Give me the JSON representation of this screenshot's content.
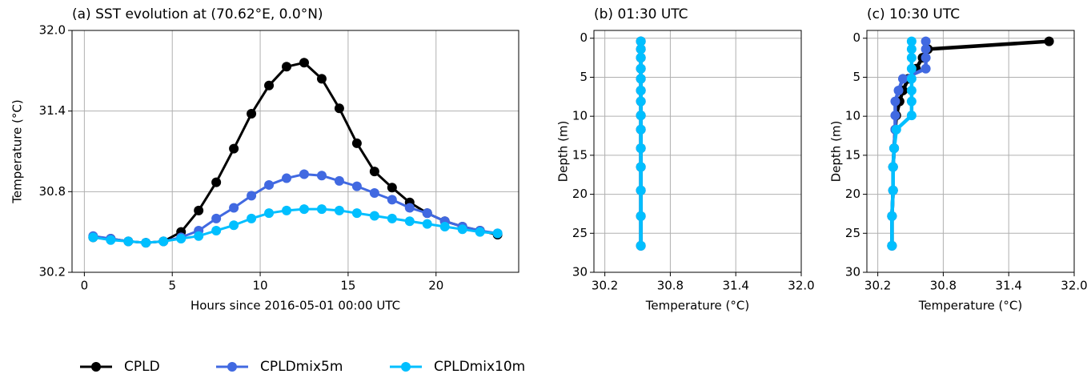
{
  "chart_data": [
    {
      "type": "line",
      "title": "(a) SST evolution at (70.62°E, 0.0°N)",
      "x_label": "Hours since 2016-05-01 00:00 UTC",
      "y_label": "Temperature (°C)",
      "x": [
        0.5,
        1.5,
        2.5,
        3.5,
        4.5,
        5.5,
        6.5,
        7.5,
        8.5,
        9.5,
        10.5,
        11.5,
        12.5,
        13.5,
        14.5,
        15.5,
        16.5,
        17.5,
        18.5,
        19.5,
        20.5,
        21.5,
        22.5,
        23.5
      ],
      "series": [
        {
          "name": "CPLD",
          "color": "#000000",
          "values": [
            30.46,
            30.45,
            30.43,
            30.42,
            30.43,
            30.5,
            30.66,
            30.87,
            31.12,
            31.38,
            31.59,
            31.73,
            31.76,
            31.64,
            31.42,
            31.16,
            30.95,
            30.83,
            30.72,
            30.64,
            30.58,
            30.54,
            30.51,
            30.48
          ]
        },
        {
          "name": "CPLDmix5m",
          "color": "#4169e1",
          "values": [
            30.47,
            30.45,
            30.43,
            30.42,
            30.43,
            30.46,
            30.51,
            30.6,
            30.68,
            30.77,
            30.85,
            30.9,
            30.93,
            30.92,
            30.88,
            30.84,
            30.79,
            30.74,
            30.68,
            30.64,
            30.58,
            30.54,
            30.51,
            30.49
          ]
        },
        {
          "name": "CPLDmix10m",
          "color": "#00bfff",
          "values": [
            30.46,
            30.44,
            30.43,
            30.42,
            30.43,
            30.45,
            30.47,
            30.51,
            30.55,
            30.6,
            30.64,
            30.66,
            30.67,
            30.67,
            30.66,
            30.64,
            30.62,
            30.6,
            30.58,
            30.56,
            30.54,
            30.52,
            30.5,
            30.49
          ]
        }
      ],
      "xlim": [
        -0.7,
        24.7
      ],
      "xticks": [
        0,
        5,
        10,
        15,
        20
      ],
      "ylim": [
        30.2,
        32.0
      ],
      "yticks": [
        30.2,
        30.8,
        31.4,
        {
          "value": 32.0,
          "label": "32.0"
        }
      ],
      "grid": true
    },
    {
      "type": "profile",
      "title": "(b) 01:30 UTC",
      "x_label": "Temperature (°C)",
      "y_label": "Depth (m)",
      "y": [
        0.4,
        1.4,
        2.5,
        3.9,
        5.2,
        6.7,
        8.1,
        9.9,
        11.7,
        14.1,
        16.5,
        19.5,
        22.8,
        26.6
      ],
      "series": [
        {
          "name": "CPLD",
          "color": "#000000",
          "values": [
            30.53,
            30.53,
            30.53,
            30.53,
            30.53,
            30.53,
            30.53,
            30.53,
            30.53,
            30.53,
            30.53,
            30.53,
            30.53,
            30.53
          ]
        },
        {
          "name": "CPLDmix5m",
          "color": "#4169e1",
          "values": [
            30.53,
            30.53,
            30.53,
            30.53,
            30.53,
            30.53,
            30.53,
            30.53,
            30.53,
            30.53,
            30.53,
            30.53,
            30.53,
            30.53
          ]
        },
        {
          "name": "CPLDmix10m",
          "color": "#00bfff",
          "values": [
            30.53,
            30.53,
            30.53,
            30.53,
            30.53,
            30.53,
            30.53,
            30.53,
            30.53,
            30.53,
            30.53,
            30.53,
            30.53,
            30.53
          ]
        }
      ],
      "xlim": [
        30.1,
        32.0
      ],
      "xticks": [
        30.2,
        30.8,
        31.4,
        {
          "value": 32.0,
          "label": "32.0"
        }
      ],
      "ylim": [
        -1,
        30
      ],
      "yticks": [
        0,
        5,
        10,
        15,
        20,
        25,
        30
      ],
      "y_inverted": true,
      "grid": true
    },
    {
      "type": "profile",
      "title": "(c) 10:30 UTC",
      "x_label": "Temperature (°C)",
      "y_label": "Depth (m)",
      "y": [
        0.4,
        1.4,
        2.5,
        3.9,
        5.2,
        6.7,
        8.1,
        9.9,
        11.7,
        14.1,
        16.5,
        19.5,
        22.8,
        26.6
      ],
      "series": [
        {
          "name": "CPLD",
          "color": "#000000",
          "values": [
            31.77,
            30.66,
            30.61,
            30.55,
            30.48,
            30.43,
            30.4,
            30.37,
            30.36,
            30.35,
            30.34,
            30.34,
            30.33,
            30.33
          ]
        },
        {
          "name": "CPLDmix5m",
          "color": "#4169e1",
          "values": [
            30.64,
            30.64,
            30.64,
            30.64,
            30.43,
            30.39,
            30.36,
            30.36,
            30.36,
            30.35,
            30.34,
            30.34,
            30.33,
            30.33
          ]
        },
        {
          "name": "CPLDmix10m",
          "color": "#00bfff",
          "values": [
            30.51,
            30.51,
            30.51,
            30.51,
            30.51,
            30.51,
            30.51,
            30.51,
            30.37,
            30.35,
            30.34,
            30.34,
            30.33,
            30.33
          ]
        }
      ],
      "xlim": [
        30.1,
        32.0
      ],
      "xticks": [
        30.2,
        30.8,
        31.4,
        {
          "value": 32.0,
          "label": "32.0"
        }
      ],
      "ylim": [
        -1,
        30
      ],
      "yticks": [
        0,
        5,
        10,
        15,
        20,
        25,
        30
      ],
      "y_inverted": true,
      "grid": true
    }
  ]
}
